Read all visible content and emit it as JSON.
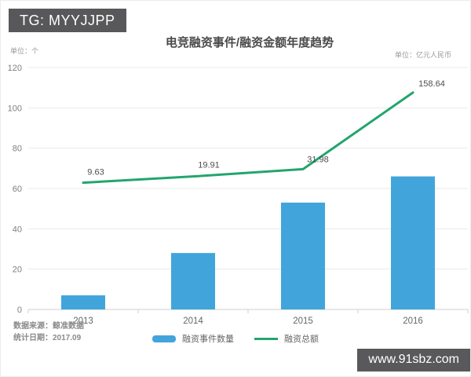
{
  "watermarks": {
    "telegram_badge": "TG: MYYJJPP",
    "site_badge": "www.91sbz.com"
  },
  "chart_data": {
    "type": "bar+line",
    "title": "电竞融资事件/融资金额年度趋势",
    "left_axis_unit": "单位：个",
    "right_axis_unit": "单位：亿元人民币",
    "categories": [
      "2013",
      "2014",
      "2015",
      "2016"
    ],
    "series": [
      {
        "name": "融资事件数量",
        "type": "bar",
        "axis": "left",
        "color": "#41a5db",
        "values": [
          7,
          28,
          53,
          66
        ]
      },
      {
        "name": "融资总额",
        "type": "line",
        "axis": "right",
        "color": "#23a56e",
        "values": [
          9.63,
          19.91,
          31.98,
          158.64
        ],
        "point_labels": [
          "9.63",
          "19.91",
          "31.98",
          "158.64"
        ]
      }
    ],
    "ylim": [
      0,
      120
    ],
    "yticks": [
      0,
      20,
      40,
      60,
      80,
      100,
      120
    ],
    "y2lim": [
      -200,
      200
    ],
    "grid": true,
    "legend_position": "bottom"
  },
  "footer": {
    "source": "数据来源：鲸准数据",
    "date": "统计日期：2017.09"
  }
}
